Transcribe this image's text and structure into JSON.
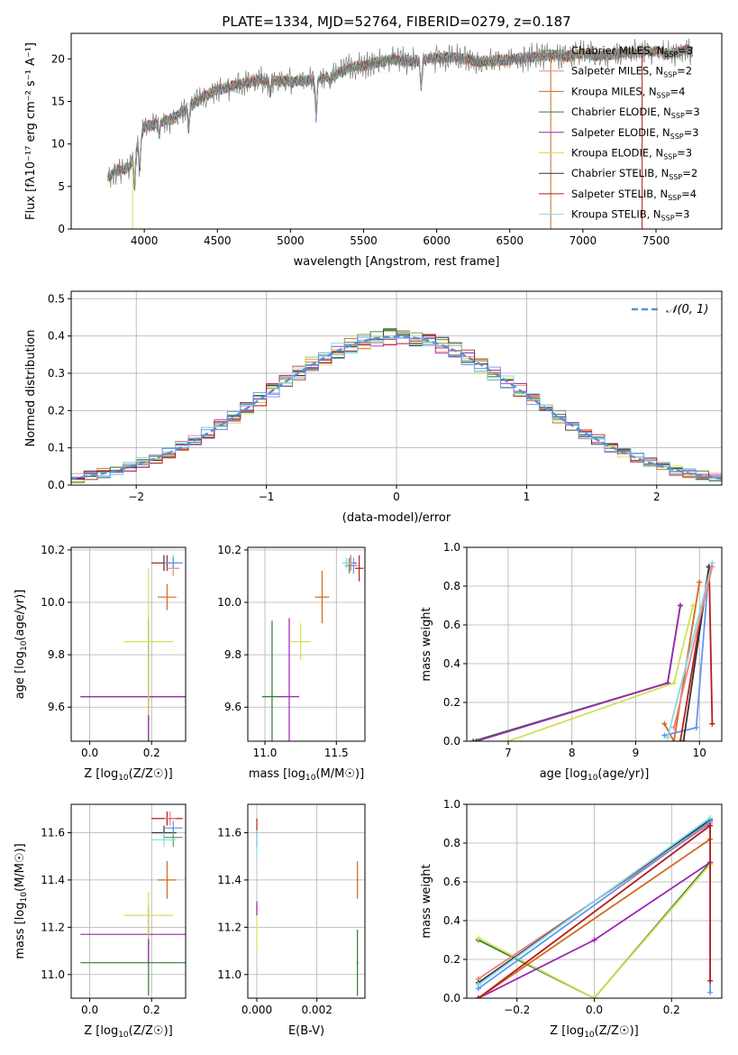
{
  "figure": {
    "title": "PLATE=1334, MJD=52764, FIBERID=0279, z=0.187"
  },
  "chart_data": [
    {
      "id": "spectrum",
      "type": "line",
      "xlabel": "wavelength [Angstrom, rest frame]",
      "ylabel": "Flux [fλ10⁻¹⁷ erg cm⁻² s⁻¹ A⁻¹]",
      "xlim": [
        3500,
        7950
      ],
      "ylim": [
        0,
        23
      ],
      "xticks": [
        4000,
        4500,
        5000,
        5500,
        6000,
        6500,
        7000,
        7500
      ],
      "yticks": [
        0,
        5,
        10,
        15,
        20
      ],
      "grid": false,
      "legend_position": "top-right",
      "continuum": {
        "x": [
          3750,
          3800,
          3900,
          4000,
          4100,
          4200,
          4300,
          4400,
          4500,
          4600,
          4700,
          4800,
          4900,
          5000,
          5100,
          5200,
          5300,
          5400,
          5500,
          5600,
          5700,
          5800,
          5900,
          6000,
          6100,
          6200,
          6300,
          6400,
          6500,
          6600,
          6700,
          6800,
          6900,
          7000,
          7100,
          7200,
          7300,
          7400,
          7500,
          7600,
          7700,
          7750
        ],
        "y": [
          6.0,
          6.8,
          7.2,
          12.0,
          12.5,
          13.0,
          14.3,
          15.5,
          16.4,
          16.8,
          17.2,
          17.5,
          17.4,
          17.3,
          17.4,
          17.6,
          18.1,
          19.0,
          19.2,
          19.6,
          20.0,
          19.7,
          19.8,
          20.1,
          20.2,
          20.0,
          19.6,
          19.8,
          19.9,
          20.1,
          20.3,
          20.4,
          20.3,
          20.7,
          20.4,
          20.5,
          20.7,
          20.8,
          20.9,
          20.5,
          21.1,
          20.8
        ]
      },
      "absorption_features": [
        {
          "x": 3934,
          "depth": 4.0
        },
        {
          "x": 3969,
          "depth": 3.5
        },
        {
          "x": 4102,
          "depth": 1.5
        },
        {
          "x": 4304,
          "depth": 2.5
        },
        {
          "x": 4861,
          "depth": 1.5
        },
        {
          "x": 5175,
          "depth": 4.5
        },
        {
          "x": 5270,
          "depth": 1.0
        },
        {
          "x": 5893,
          "depth": 3.2
        }
      ],
      "sharp_features": [
        {
          "series": "Kroupa ELODIE",
          "x": 3920,
          "y_min": 0.0
        },
        {
          "series": "Kroupa MILES",
          "x": 6780,
          "y_min": 0.0
        },
        {
          "series": "Salpeter STELIB",
          "x": 7405,
          "y_min": 0.0
        }
      ],
      "series": [
        {
          "name": "Chabrier MILES, N_SSP=3",
          "label_main": "Chabrier MILES, N",
          "label_sub": "SSP",
          "label_tail": "=3",
          "color": "#5b9b4b"
        },
        {
          "name": "Salpeter MILES, N_SSP=2",
          "label_main": "Salpeter MILES, N",
          "label_sub": "SSP",
          "label_tail": "=2",
          "color": "#f08080"
        },
        {
          "name": "Kroupa MILES, N_SSP=4",
          "label_main": "Kroupa MILES, N",
          "label_sub": "SSP",
          "label_tail": "=4",
          "color": "#d2691e"
        },
        {
          "name": "Chabrier ELODIE, N_SSP=3",
          "label_main": "Chabrier ELODIE, N",
          "label_sub": "SSP",
          "label_tail": "=3",
          "color": "#2e7d32"
        },
        {
          "name": "Salpeter ELODIE, N_SSP=3",
          "label_main": "Salpeter ELODIE, N",
          "label_sub": "SSP",
          "label_tail": "=3",
          "color": "#9c27b0"
        },
        {
          "name": "Kroupa ELODIE, N_SSP=3",
          "label_main": "Kroupa ELODIE, N",
          "label_sub": "SSP",
          "label_tail": "=3",
          "color": "#d4e157"
        },
        {
          "name": "Chabrier STELIB, N_SSP=2",
          "label_main": "Chabrier STELIB, N",
          "label_sub": "SSP",
          "label_tail": "=2",
          "color": "#333333"
        },
        {
          "name": "Salpeter STELIB, N_SSP=4",
          "label_main": "Salpeter STELIB, N",
          "label_sub": "SSP",
          "label_tail": "=4",
          "color": "#b71c1c"
        },
        {
          "name": "Kroupa STELIB, N_SSP=3",
          "label_main": "Kroupa STELIB, N",
          "label_sub": "SSP",
          "label_tail": "=3",
          "color": "#80deea"
        }
      ],
      "data_color": "#808080"
    },
    {
      "id": "residuals",
      "type": "histogram",
      "xlabel": "(data-model)/error",
      "ylabel": "Normed distribution",
      "xlim": [
        -2.5,
        2.5
      ],
      "ylim": [
        0,
        0.52
      ],
      "xticks": [
        -2,
        -1,
        0,
        1,
        2
      ],
      "xtick_labels": [
        "−2",
        "−1",
        "0",
        "1",
        "2"
      ],
      "yticks": [
        0.0,
        0.1,
        0.2,
        0.3,
        0.4,
        0.5
      ],
      "ytick_labels": [
        "0.0",
        "0.1",
        "0.2",
        "0.3",
        "0.4",
        "0.5"
      ],
      "grid": true,
      "legend_position": "top-right",
      "reference_curve": {
        "label": "𝒩(0, 1)",
        "mean": 0,
        "sigma": 1,
        "color": "#5b8fd6",
        "style": "dashed"
      },
      "bin_width": 0.1,
      "series_colors": [
        "#5b9b4b",
        "#f08080",
        "#d2691e",
        "#2e7d32",
        "#9c27b0",
        "#d4e157",
        "#333333",
        "#b71c1c",
        "#80deea",
        "#6495ed"
      ]
    },
    {
      "id": "age_vs_Z",
      "type": "errorbar",
      "xlabel_main": "Z [log",
      "xlabel_sub": "10",
      "xlabel_tail": "(Z/Z☉)]",
      "ylabel_main": "age  [log",
      "ylabel_sub": "10",
      "ylabel_tail": "(age/yr)]",
      "xlim": [
        -0.06,
        0.31
      ],
      "ylim": [
        9.47,
        10.21
      ],
      "xticks": [
        0.0,
        0.2
      ],
      "xtick_labels": [
        "0.0",
        "0.2"
      ],
      "yticks": [
        9.6,
        9.8,
        10.0,
        10.2
      ],
      "ytick_labels": [
        "9.6",
        "9.8",
        "10.0",
        "10.2"
      ],
      "grid": true,
      "points": [
        {
          "x": 0.19,
          "y": 9.64,
          "xerr": 0.22,
          "yerr": 0.29,
          "color": "#2e7d32"
        },
        {
          "x": 0.19,
          "y": 9.64,
          "xerr": 0.22,
          "yerr": 0.3,
          "color": "#9c27b0"
        },
        {
          "x": 0.19,
          "y": 9.85,
          "xerr": 0.08,
          "yerr": 0.28,
          "color": "#d4e157"
        },
        {
          "x": 0.25,
          "y": 10.02,
          "xerr": 0.03,
          "yerr": 0.05,
          "color": "#d2691e"
        },
        {
          "x": 0.24,
          "y": 10.15,
          "xerr": 0.04,
          "yerr": 0.03,
          "color": "#333333"
        },
        {
          "x": 0.25,
          "y": 10.15,
          "xerr": 0.05,
          "yerr": 0.03,
          "color": "#b71c1c"
        },
        {
          "x": 0.27,
          "y": 10.15,
          "xerr": 0.03,
          "yerr": 0.03,
          "color": "#5b9b4b"
        },
        {
          "x": 0.27,
          "y": 10.13,
          "xerr": 0.02,
          "yerr": 0.03,
          "color": "#f08080"
        },
        {
          "x": 0.27,
          "y": 10.15,
          "xerr": 0.03,
          "yerr": 0.03,
          "color": "#80deea"
        },
        {
          "x": 0.27,
          "y": 10.15,
          "xerr": 0.03,
          "yerr": 0.02,
          "color": "#6495ed"
        }
      ]
    },
    {
      "id": "age_vs_mass",
      "type": "errorbar",
      "xlabel_main": "mass [log",
      "xlabel_sub": "10",
      "xlabel_tail": "(M/M☉)]",
      "xlim": [
        10.88,
        11.7
      ],
      "ylim": [
        9.47,
        10.21
      ],
      "xticks": [
        11.0,
        11.5
      ],
      "xtick_labels": [
        "11.0",
        "11.5"
      ],
      "yticks": [
        9.6,
        9.8,
        10.0,
        10.2
      ],
      "ytick_labels": [
        "9.6",
        "9.8",
        "10.0",
        "10.2"
      ],
      "grid": true,
      "points": [
        {
          "x": 11.05,
          "y": 9.64,
          "xerr": 0.07,
          "yerr": 0.29,
          "color": "#2e7d32"
        },
        {
          "x": 11.17,
          "y": 9.64,
          "xerr": 0.07,
          "yerr": 0.3,
          "color": "#9c27b0"
        },
        {
          "x": 11.25,
          "y": 9.85,
          "xerr": 0.07,
          "yerr": 0.07,
          "color": "#d4e157"
        },
        {
          "x": 11.4,
          "y": 10.02,
          "xerr": 0.05,
          "yerr": 0.1,
          "color": "#d2691e"
        },
        {
          "x": 11.6,
          "y": 10.15,
          "xerr": 0.04,
          "yerr": 0.03,
          "color": "#333333"
        },
        {
          "x": 11.66,
          "y": 10.13,
          "xerr": 0.03,
          "yerr": 0.05,
          "color": "#b71c1c"
        },
        {
          "x": 11.59,
          "y": 10.14,
          "xerr": 0.03,
          "yerr": 0.03,
          "color": "#5b9b4b"
        },
        {
          "x": 11.6,
          "y": 10.15,
          "xerr": 0.03,
          "yerr": 0.03,
          "color": "#f08080"
        },
        {
          "x": 11.57,
          "y": 10.15,
          "xerr": 0.03,
          "yerr": 0.02,
          "color": "#80deea"
        },
        {
          "x": 11.62,
          "y": 10.14,
          "xerr": 0.03,
          "yerr": 0.03,
          "color": "#6495ed"
        }
      ]
    },
    {
      "id": "mass_weight_vs_age",
      "type": "line",
      "xlabel_main": "age  [log",
      "xlabel_sub": "10",
      "xlabel_tail": "(age/yr)]",
      "ylabel": "mass weight",
      "xlim": [
        6.35,
        10.35
      ],
      "ylim": [
        0,
        1.0
      ],
      "xticks": [
        7,
        8,
        9,
        10
      ],
      "xtick_labels": [
        "7",
        "8",
        "9",
        "10"
      ],
      "yticks": [
        0.0,
        0.2,
        0.4,
        0.6,
        0.8,
        1.0
      ],
      "ytick_labels": [
        "0.0",
        "0.2",
        "0.4",
        "0.6",
        "0.8",
        "1.0"
      ],
      "grid": true,
      "series": [
        {
          "color": "#2e7d32",
          "points": [
            [
              6.45,
              0.0
            ],
            [
              9.5,
              0.3
            ],
            [
              9.7,
              0.7
            ]
          ]
        },
        {
          "color": "#9c27b0",
          "points": [
            [
              6.5,
              0.0
            ],
            [
              9.5,
              0.3
            ],
            [
              9.7,
              0.7
            ]
          ]
        },
        {
          "color": "#d4e157",
          "points": [
            [
              7.0,
              0.0
            ],
            [
              9.6,
              0.3
            ],
            [
              9.9,
              0.7
            ]
          ]
        },
        {
          "color": "#d2691e",
          "points": [
            [
              9.45,
              0.09
            ],
            [
              9.6,
              0.0
            ],
            [
              10.0,
              0.82
            ]
          ]
        },
        {
          "color": "#6495ed",
          "points": [
            [
              9.45,
              0.03
            ],
            [
              9.95,
              0.07
            ],
            [
              10.15,
              0.9
            ]
          ]
        },
        {
          "color": "#b71c1c",
          "points": [
            [
              9.7,
              0.0
            ],
            [
              10.15,
              0.9
            ],
            [
              10.2,
              0.09
            ]
          ]
        },
        {
          "color": "#333333",
          "points": [
            [
              9.75,
              0.0
            ],
            [
              10.15,
              0.9
            ]
          ]
        },
        {
          "color": "#80deea",
          "points": [
            [
              9.5,
              0.02
            ],
            [
              10.2,
              0.92
            ]
          ]
        },
        {
          "color": "#f08080",
          "points": [
            [
              9.6,
              0.07
            ],
            [
              10.2,
              0.9
            ]
          ]
        }
      ]
    },
    {
      "id": "mass_vs_Z",
      "type": "errorbar",
      "xlabel_main": "Z [log",
      "xlabel_sub": "10",
      "xlabel_tail": "(Z/Z☉)]",
      "ylabel_main": "mass [log",
      "ylabel_sub": "10",
      "ylabel_tail": "(M/M☉)]",
      "xlim": [
        -0.06,
        0.31
      ],
      "ylim": [
        10.9,
        11.72
      ],
      "xticks": [
        0.0,
        0.2
      ],
      "xtick_labels": [
        "0.0",
        "0.2"
      ],
      "yticks": [
        11.0,
        11.2,
        11.4,
        11.6
      ],
      "ytick_labels": [
        "11.0",
        "11.2",
        "11.4",
        "11.6"
      ],
      "grid": true,
      "points": [
        {
          "x": 0.19,
          "y": 11.05,
          "xerr": 0.22,
          "yerr": 0.14,
          "color": "#2e7d32"
        },
        {
          "x": 0.19,
          "y": 11.17,
          "xerr": 0.22,
          "yerr": 0.12,
          "color": "#9c27b0"
        },
        {
          "x": 0.19,
          "y": 11.25,
          "xerr": 0.08,
          "yerr": 0.1,
          "color": "#d4e157"
        },
        {
          "x": 0.25,
          "y": 11.4,
          "xerr": 0.03,
          "yerr": 0.08,
          "color": "#d2691e"
        },
        {
          "x": 0.24,
          "y": 11.6,
          "xerr": 0.04,
          "yerr": 0.03,
          "color": "#333333"
        },
        {
          "x": 0.25,
          "y": 11.66,
          "xerr": 0.05,
          "yerr": 0.03,
          "color": "#b71c1c"
        },
        {
          "x": 0.27,
          "y": 11.58,
          "xerr": 0.03,
          "yerr": 0.04,
          "color": "#5b9b4b"
        },
        {
          "x": 0.26,
          "y": 11.66,
          "xerr": 0.02,
          "yerr": 0.03,
          "color": "#f08080"
        },
        {
          "x": 0.24,
          "y": 11.57,
          "xerr": 0.04,
          "yerr": 0.03,
          "color": "#80deea"
        },
        {
          "x": 0.27,
          "y": 11.62,
          "xerr": 0.03,
          "yerr": 0.03,
          "color": "#6495ed"
        }
      ]
    },
    {
      "id": "mass_vs_ebv",
      "type": "errorbar",
      "xlabel": "E(B-V)",
      "xlim": [
        -0.0003,
        0.0036
      ],
      "ylim": [
        10.9,
        11.72
      ],
      "xticks": [
        0.0,
        0.002
      ],
      "xtick_labels": [
        "0.000",
        "0.002"
      ],
      "yticks": [
        11.0,
        11.2,
        11.4,
        11.6
      ],
      "ytick_labels": [
        "11.0",
        "11.2",
        "11.4",
        "11.6"
      ],
      "grid": true,
      "points": [
        {
          "x": 0.0,
          "y": 11.6,
          "xerr": 2e-05,
          "yerr": 0.06,
          "color": "#b71c1c"
        },
        {
          "x": 0.0,
          "y": 11.55,
          "xerr": 2e-05,
          "yerr": 0.06,
          "color": "#80deea"
        },
        {
          "x": 0.0,
          "y": 11.2,
          "xerr": 2e-05,
          "yerr": 0.1,
          "color": "#d4e157"
        },
        {
          "x": 0.0,
          "y": 11.28,
          "xerr": 2e-05,
          "yerr": 0.03,
          "color": "#9c27b0"
        },
        {
          "x": 0.00335,
          "y": 11.4,
          "xerr": 3e-05,
          "yerr": 0.08,
          "color": "#d2691e"
        },
        {
          "x": 0.00335,
          "y": 11.05,
          "xerr": 3e-05,
          "yerr": 0.14,
          "color": "#2e7d32"
        }
      ]
    },
    {
      "id": "mass_weight_vs_Z",
      "type": "line",
      "xlabel_main": "Z [log",
      "xlabel_sub": "10",
      "xlabel_tail": "(Z/Z☉)]",
      "ylabel": "mass weight",
      "xlim": [
        -0.33,
        0.33
      ],
      "ylim": [
        0,
        1.0
      ],
      "xticks": [
        -0.2,
        0.0,
        0.2
      ],
      "xtick_labels": [
        "−0.2",
        "0.0",
        "0.2"
      ],
      "yticks": [
        0.0,
        0.2,
        0.4,
        0.6,
        0.8,
        1.0
      ],
      "ytick_labels": [
        "0.0",
        "0.2",
        "0.4",
        "0.6",
        "0.8",
        "1.0"
      ],
      "grid": true,
      "series": [
        {
          "color": "#2e7d32",
          "points": [
            [
              -0.3,
              0.3
            ],
            [
              0.0,
              0.0
            ],
            [
              0.3,
              0.7
            ]
          ]
        },
        {
          "color": "#d4e157",
          "points": [
            [
              -0.3,
              0.31
            ],
            [
              0.0,
              0.0
            ],
            [
              0.3,
              0.69
            ]
          ]
        },
        {
          "color": "#9c27b0",
          "points": [
            [
              -0.3,
              0.0
            ],
            [
              0.0,
              0.3
            ],
            [
              0.3,
              0.7
            ]
          ]
        },
        {
          "color": "#f08080",
          "points": [
            [
              -0.3,
              0.1
            ],
            [
              0.3,
              0.9
            ]
          ]
        },
        {
          "color": "#333333",
          "points": [
            [
              -0.3,
              0.08
            ],
            [
              0.3,
              0.92
            ]
          ]
        },
        {
          "color": "#80deea",
          "points": [
            [
              -0.3,
              0.07
            ],
            [
              0.3,
              0.93
            ]
          ]
        },
        {
          "color": "#6495ed",
          "points": [
            [
              -0.3,
              0.05
            ],
            [
              0.3,
              0.91
            ],
            [
              0.3,
              0.03
            ]
          ]
        },
        {
          "color": "#d2691e",
          "points": [
            [
              -0.3,
              0.0
            ],
            [
              0.3,
              0.82
            ]
          ]
        },
        {
          "color": "#b71c1c",
          "points": [
            [
              -0.3,
              0.0
            ],
            [
              0.3,
              0.89
            ],
            [
              0.3,
              0.09
            ]
          ]
        }
      ]
    }
  ]
}
